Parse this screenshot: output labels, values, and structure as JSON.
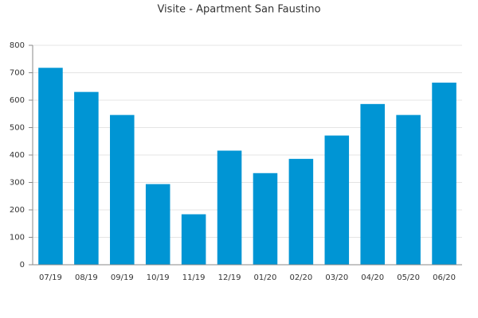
{
  "chart_data": {
    "type": "bar",
    "title": "Visite - Apartment San Faustino",
    "categories": [
      "07/19",
      "08/19",
      "09/19",
      "10/19",
      "11/19",
      "12/19",
      "01/20",
      "02/20",
      "03/20",
      "04/20",
      "05/20",
      "06/20"
    ],
    "values": [
      718,
      630,
      546,
      294,
      184,
      416,
      334,
      386,
      471,
      586,
      546,
      664
    ],
    "color": "#0095d4",
    "ylim": [
      0,
      800
    ],
    "yticks": [
      0,
      100,
      200,
      300,
      400,
      500,
      600,
      700,
      800
    ],
    "grid": true
  }
}
